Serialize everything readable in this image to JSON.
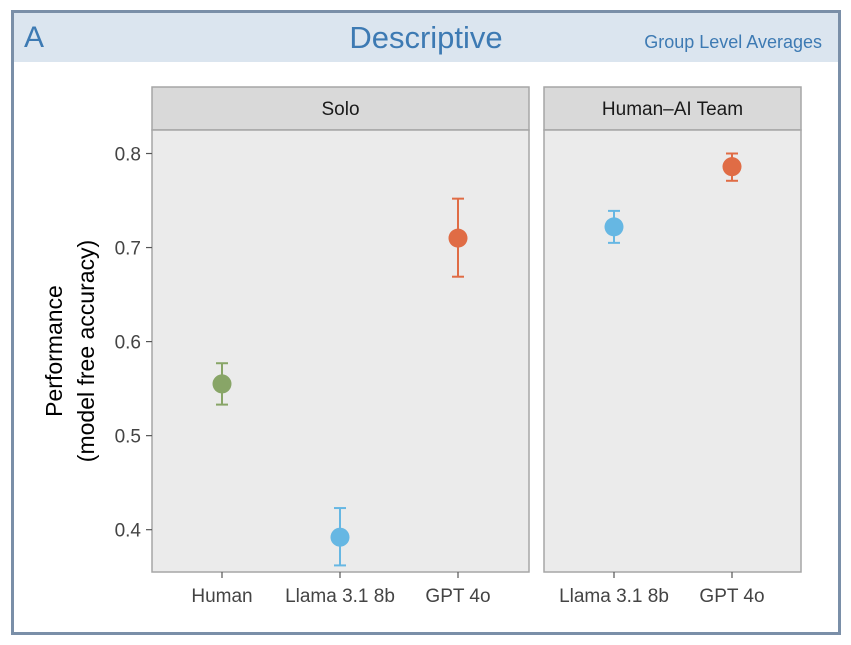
{
  "panel": {
    "letter": "A",
    "title": "Descriptive",
    "subtitle": "Group Level Averages"
  },
  "chart_data": {
    "type": "scatter",
    "ylabel": [
      "Performance",
      "(model free accuracy)"
    ],
    "ylim": [
      0.355,
      0.825
    ],
    "yticks": [
      0.4,
      0.5,
      0.6,
      0.7,
      0.8
    ],
    "grid": false,
    "facets": [
      {
        "name": "Solo",
        "categories": [
          "Human",
          "Llama 3.1 8b",
          "GPT 4o"
        ],
        "points": [
          {
            "category": "Human",
            "value": 0.555,
            "lower": 0.533,
            "upper": 0.577,
            "color": "#88a567"
          },
          {
            "category": "Llama 3.1 8b",
            "value": 0.392,
            "lower": 0.362,
            "upper": 0.423,
            "color": "#66b7e3"
          },
          {
            "category": "GPT 4o",
            "value": 0.71,
            "lower": 0.669,
            "upper": 0.752,
            "color": "#e06c45"
          }
        ]
      },
      {
        "name": "Human–AI Team",
        "categories": [
          "Llama 3.1 8b",
          "GPT 4o"
        ],
        "points": [
          {
            "category": "Llama 3.1 8b",
            "value": 0.722,
            "lower": 0.705,
            "upper": 0.739,
            "color": "#66b7e3"
          },
          {
            "category": "GPT 4o",
            "value": 0.786,
            "lower": 0.771,
            "upper": 0.8,
            "color": "#e06c45"
          }
        ]
      }
    ]
  }
}
